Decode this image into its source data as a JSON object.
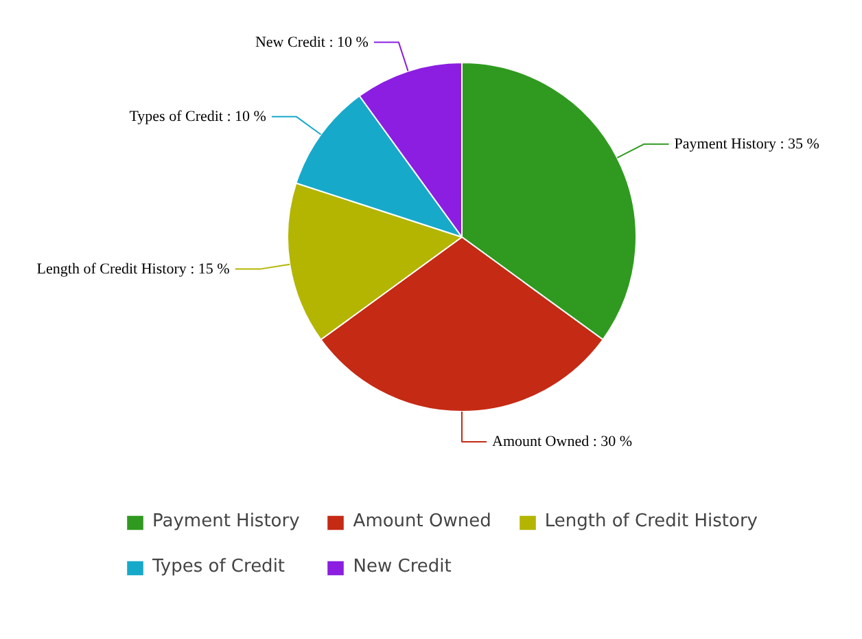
{
  "chart_data": {
    "type": "pie",
    "categories": [
      "Payment History",
      "Amount Owned",
      "Length of Credit History",
      "Types of Credit",
      "New Credit"
    ],
    "values": [
      35,
      30,
      15,
      10,
      10
    ],
    "colors": [
      "#2f9a1f",
      "#c52a15",
      "#b3b500",
      "#17a9c9",
      "#8b1ee0"
    ],
    "value_labels": [
      "Payment History : 35 %",
      "Amount Owned : 30 %",
      "Length of Credit History : 15 %",
      "Types of Credit : 10 %",
      "New Credit : 10 %"
    ],
    "legend": "bottom"
  }
}
